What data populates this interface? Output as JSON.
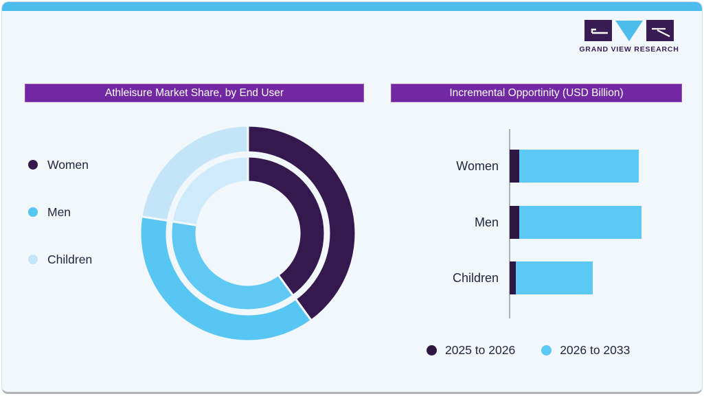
{
  "brand": {
    "logo_text": "GRAND VIEW RESEARCH",
    "logo_colors": {
      "square": "#3A1C55",
      "triangle": "#4CBCEC"
    }
  },
  "colors": {
    "top_strip": "#4CBCEC",
    "card_background": "#F1F7FB",
    "title_bar": "#7227A3",
    "women_purple": "#35194E",
    "men_blue": "#58C6F2",
    "children_pale_blue": "#C4E5F8",
    "bar_purple": "#2E1843",
    "bar_blue": "#5CC8F4",
    "text_dark": "#23263C"
  },
  "left_panel": {
    "title": "Athleisure Market Share, by End User",
    "legend": [
      {
        "label": "Women",
        "color": "#35194E"
      },
      {
        "label": "Men",
        "color": "#58C6F2"
      },
      {
        "label": "Children",
        "color": "#C4E5F8"
      }
    ]
  },
  "right_panel": {
    "title": "Incremental Opportinity (USD Billion)",
    "legend": [
      {
        "label": "2025 to 2026",
        "color": "#2E1843"
      },
      {
        "label": "2026 to 2033",
        "color": "#5CC8F4"
      }
    ]
  },
  "chart_data": [
    {
      "type": "donut",
      "title": "Athleisure Market Share, by End User",
      "categories": [
        "Women",
        "Men",
        "Children"
      ],
      "unit": "share of market (no numeric labels shown; values estimated from arc angles)",
      "start_angle_deg": 0,
      "legend_position": "left",
      "rings": [
        {
          "name": "inner",
          "values": [
            40,
            37.5,
            22.5
          ],
          "colors": [
            "#35194E",
            "#5FC9F3",
            "#CFEAFA"
          ]
        },
        {
          "name": "outer",
          "values": [
            40,
            37.5,
            22.5
          ],
          "colors": [
            "#35194E",
            "#58C6F2",
            "#C4E5F8"
          ]
        }
      ]
    },
    {
      "type": "bar",
      "orientation": "horizontal",
      "stacked": true,
      "title": "Incremental Opportinity (USD Billion)",
      "categories": [
        "Women",
        "Men",
        "Children"
      ],
      "series": [
        {
          "name": "2025 to 2026",
          "color": "#2E1843",
          "values": [
            7.3,
            7.3,
            4.7
          ]
        },
        {
          "name": "2026 to 2033",
          "color": "#5CC8F4",
          "values": [
            90.5,
            92.7,
            58.1
          ]
        }
      ],
      "value_axis": "unlabeled; values are relative units estimated from bar lengths (Men total = 100)",
      "legend_position": "bottom",
      "grid": false
    }
  ]
}
